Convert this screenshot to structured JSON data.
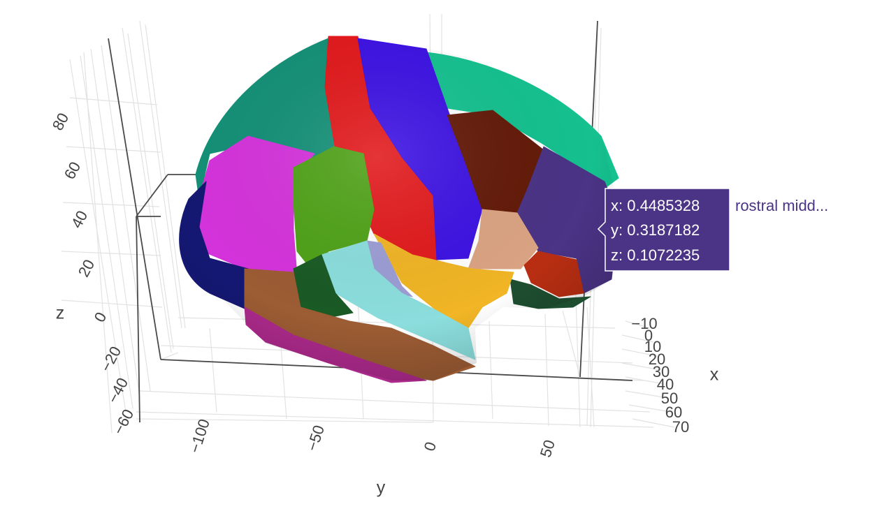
{
  "chart_data": {
    "type": "mesh3d",
    "xaxis": {
      "title": "x",
      "ticks": [
        "−10",
        "0",
        "10",
        "20",
        "30",
        "40",
        "50",
        "60",
        "70"
      ]
    },
    "yaxis": {
      "title": "y",
      "ticks": [
        "−100",
        "−50",
        "0",
        "50"
      ]
    },
    "zaxis": {
      "title": "z",
      "ticks": [
        "−60",
        "−40",
        "−20",
        "0",
        "20",
        "40",
        "60",
        "80"
      ]
    },
    "grid": true,
    "regions": [
      {
        "key": "superiorfrontal",
        "color": "#15c18f"
      },
      {
        "key": "superiorparietal",
        "color": "#149077"
      },
      {
        "key": "postcentral",
        "color": "#e2191c"
      },
      {
        "key": "precentral",
        "color": "#3d12e3"
      },
      {
        "key": "caudalmiddlefrontal",
        "color": "#641a08"
      },
      {
        "key": "rostralmiddlefrontal",
        "color": "#4b3385"
      },
      {
        "key": "inferiorparietal",
        "color": "#d533dc"
      },
      {
        "key": "supramarginal",
        "color": "#4fa218"
      },
      {
        "key": "lateraloccipital",
        "color": "#151872"
      },
      {
        "key": "parsopercularis",
        "color": "#dba483"
      },
      {
        "key": "parstriangularis",
        "color": "#b82e12"
      },
      {
        "key": "insula",
        "color": "#f1b525"
      },
      {
        "key": "transversetemporal",
        "color": "#9c9ed5"
      },
      {
        "key": "superiortemporal",
        "color": "#8bdedd"
      },
      {
        "key": "bankssts",
        "color": "#1a5a25"
      },
      {
        "key": "middletemporal",
        "color": "#9c5c34"
      },
      {
        "key": "inferiortemporal",
        "color": "#ad2a8c"
      },
      {
        "key": "parsorbitalis",
        "color": "#1e4e30"
      }
    ],
    "hover": {
      "x": "x: 0.4485328",
      "y": "y: 0.3187182",
      "z": "z: 0.1072235",
      "name": "rostral midd...",
      "bg": "#4b3385",
      "name_color": "#4b3385"
    }
  }
}
